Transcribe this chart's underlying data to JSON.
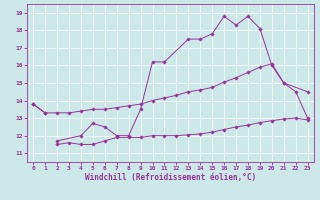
{
  "background_color": "#cce8e8",
  "line_color": "#993399",
  "xlabel": "Windchill (Refroidissement éolien,°C)",
  "ylabel_ticks": [
    11,
    12,
    13,
    14,
    15,
    16,
    17,
    18,
    19
  ],
  "xlabel_ticks": [
    0,
    1,
    2,
    3,
    4,
    5,
    6,
    7,
    8,
    9,
    10,
    11,
    12,
    13,
    14,
    15,
    16,
    17,
    18,
    19,
    20,
    21,
    22,
    23
  ],
  "xlim": [
    -0.5,
    23.5
  ],
  "ylim": [
    10.5,
    19.5
  ],
  "line_width": 0.7,
  "marker": "D",
  "marker_size": 1.8,
  "tick_fontsize": 4.5,
  "label_fontsize": 5.5,
  "series1_x": [
    0,
    1
  ],
  "series1_y": [
    13.8,
    13.3
  ],
  "series2_x": [
    0,
    1,
    2,
    3,
    4,
    5,
    6,
    7,
    8,
    9,
    10,
    11,
    12,
    13,
    14,
    15,
    16,
    17,
    18,
    19,
    20,
    21,
    22,
    23
  ],
  "series2_y": [
    13.8,
    13.3,
    13.3,
    13.3,
    13.4,
    13.5,
    13.5,
    13.6,
    13.7,
    13.8,
    14.0,
    14.15,
    14.3,
    14.5,
    14.6,
    14.75,
    15.05,
    15.3,
    15.6,
    15.9,
    16.1,
    15.0,
    14.5,
    13.0
  ],
  "series3_x": [
    2,
    4,
    5,
    6,
    7,
    8,
    9,
    10,
    11,
    13,
    14,
    15,
    16,
    17,
    18,
    19,
    20,
    21,
    23
  ],
  "series3_y": [
    11.7,
    12.0,
    12.7,
    12.5,
    12.0,
    12.0,
    13.5,
    16.2,
    16.2,
    17.5,
    17.5,
    17.8,
    18.8,
    18.3,
    18.8,
    18.1,
    16.0,
    15.0,
    14.5
  ],
  "series4_x": [
    2,
    3,
    4,
    5,
    6,
    7,
    8,
    9,
    10,
    11,
    12,
    13,
    14,
    15,
    16,
    17,
    18,
    19,
    20,
    21,
    22,
    23
  ],
  "series4_y": [
    11.5,
    11.6,
    11.5,
    11.5,
    11.7,
    11.9,
    11.9,
    11.9,
    12.0,
    12.0,
    12.0,
    12.05,
    12.1,
    12.2,
    12.35,
    12.5,
    12.6,
    12.75,
    12.85,
    12.95,
    13.0,
    12.9
  ]
}
